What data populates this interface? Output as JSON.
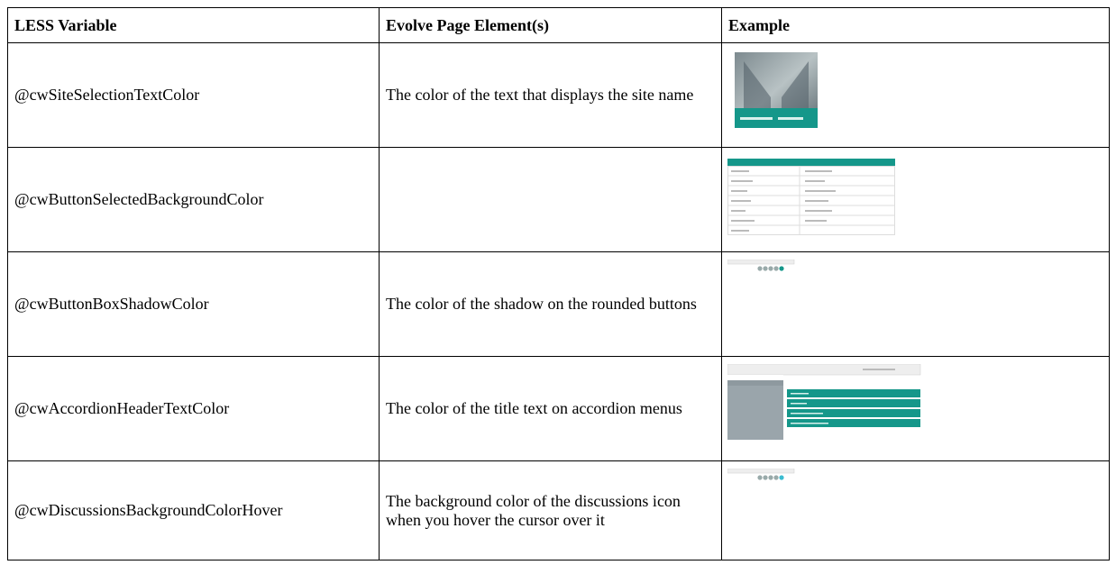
{
  "table": {
    "headers": [
      "LESS Variable",
      "Evolve Page Element(s)",
      "Example"
    ],
    "rows": [
      {
        "variable": "@cwSiteSelectionTextColor",
        "description": "The color of the text that displays the site name"
      },
      {
        "variable": "@cwButtonSelectedBackgroundColor"
      },
      {
        "variable": "@cwButtonBoxShadowColor",
        "description": "The color of the shadow on the rounded buttons"
      },
      {
        "variable": "@cwAccordionHeaderTextColor",
        "description": "The color of the title text on accordion menus"
      },
      {
        "variable": "@cwDiscussionsBackgroundColorHover",
        "description": "The background color of the discussions icon when you hover the cursor over it"
      }
    ]
  }
}
